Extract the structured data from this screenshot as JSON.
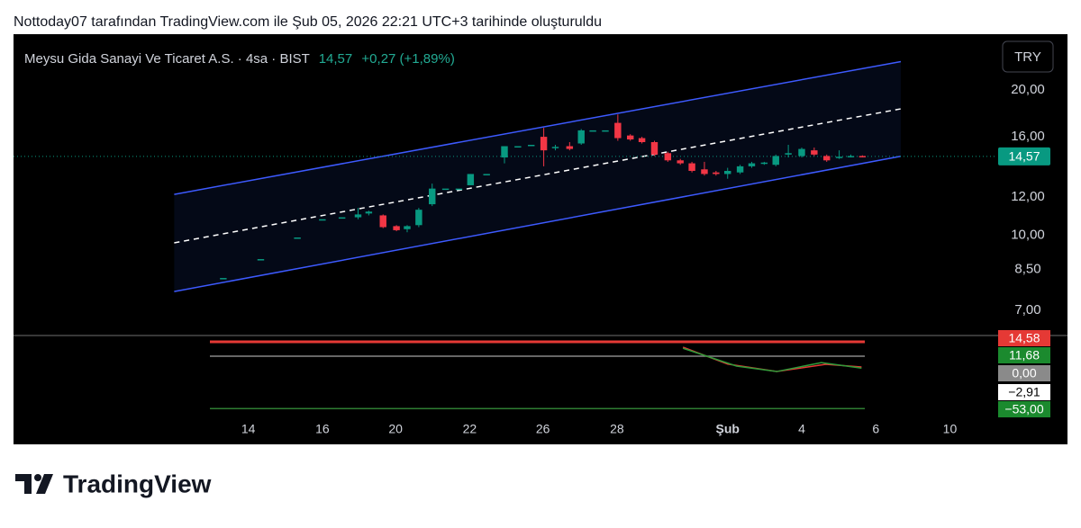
{
  "header": {
    "caption": "Nottoday07 tarafından TradingView.com ile Şub 05, 2026 22:21 UTC+3 tarihinde oluşturuldu"
  },
  "footer": {
    "brand": "TradingView"
  },
  "chart_data": {
    "type": "candlestick",
    "title": "Meysu Gida Sanayi Ve Ticaret A.S. · 4sa · BIST",
    "last_price": {
      "value": 14.57,
      "label": "14,57"
    },
    "change": "+0,27 (+1,89%)",
    "currency": "TRY",
    "log_scale": true,
    "grid": false,
    "up_color": "#089981",
    "down_color": "#f23645",
    "ylim": [
      6.23,
      26.1
    ],
    "yticks": [
      {
        "value": 20,
        "label": "20,00"
      },
      {
        "value": 16,
        "label": "16,00"
      },
      {
        "value": 12,
        "label": "12,00"
      },
      {
        "value": 10,
        "label": "10,00"
      },
      {
        "value": 8.5,
        "label": "8,50"
      },
      {
        "value": 7,
        "label": "7,00"
      }
    ],
    "xlim": [
      0,
      110
    ],
    "xticks": [
      {
        "value": 26.3,
        "label": "14"
      },
      {
        "value": 34.6,
        "label": "16"
      },
      {
        "value": 42.8,
        "label": "20"
      },
      {
        "value": 51.1,
        "label": "22"
      },
      {
        "value": 59.3,
        "label": "26"
      },
      {
        "value": 67.6,
        "label": "28"
      },
      {
        "value": 80,
        "label": "Şub"
      },
      {
        "value": 88.3,
        "label": "4"
      },
      {
        "value": 96.6,
        "label": "6"
      },
      {
        "value": 104.9,
        "label": "10"
      }
    ],
    "x": [
      23.5,
      27.7,
      31.8,
      34.6,
      36.8,
      38.6,
      39.8,
      41.4,
      42.9,
      44.1,
      45.4,
      46.9,
      48.4,
      49.9,
      51.2,
      53.0,
      55.0,
      56.5,
      58.0,
      59.4,
      60.7,
      62.3,
      63.6,
      64.9,
      66.3,
      67.7,
      69.1,
      70.4,
      71.8,
      73.3,
      74.7,
      76.0,
      77.4,
      78.7,
      80.0,
      81.4,
      82.7,
      84.1,
      85.4,
      86.8,
      88.3,
      89.7,
      91.1,
      92.5,
      93.8,
      95.1
    ],
    "open": [
      8.16,
      8.93,
      9.9,
      10.8,
      10.9,
      10.9,
      11.1,
      11.0,
      10.45,
      10.3,
      10.5,
      11.6,
      12.5,
      12.5,
      12.7,
      13.4,
      14.5,
      15.3,
      15.4,
      16.0,
      15.2,
      15.3,
      15.5,
      16.5,
      16.5,
      17.1,
      16.1,
      15.9,
      15.6,
      14.8,
      14.3,
      14.1,
      13.7,
      13.5,
      13.4,
      13.5,
      13.9,
      14.1,
      14.0,
      14.7,
      14.6,
      15.0,
      14.6,
      14.5,
      14.55,
      14.6
    ],
    "high": [
      8.16,
      8.93,
      9.9,
      10.8,
      10.9,
      11.4,
      11.25,
      11.05,
      10.5,
      10.5,
      11.4,
      12.8,
      12.5,
      12.5,
      13.4,
      13.4,
      15.3,
      15.3,
      15.4,
      16.7,
      15.4,
      15.6,
      16.6,
      16.5,
      16.5,
      17.8,
      16.2,
      16.0,
      15.7,
      14.9,
      14.4,
      14.2,
      14.2,
      13.6,
      13.8,
      14.0,
      14.2,
      14.2,
      14.7,
      15.4,
      15.2,
      15.2,
      14.7,
      15.0,
      14.7,
      14.65
    ],
    "low": [
      8.16,
      8.93,
      9.9,
      10.8,
      10.9,
      10.8,
      11.0,
      10.35,
      10.2,
      10.15,
      10.4,
      11.5,
      12.5,
      12.5,
      12.7,
      13.4,
      14.1,
      15.3,
      15.4,
      13.9,
      15.0,
      15.0,
      15.4,
      16.5,
      16.5,
      15.7,
      15.7,
      15.5,
      14.6,
      14.2,
      14.0,
      13.5,
      13.3,
      13.3,
      13.1,
      13.4,
      13.8,
      14.0,
      13.9,
      14.5,
      14.5,
      14.6,
      14.2,
      14.4,
      14.5,
      14.5
    ],
    "close": [
      8.16,
      8.93,
      9.9,
      10.8,
      10.9,
      11.05,
      11.2,
      10.4,
      10.25,
      10.45,
      11.3,
      12.5,
      12.5,
      12.5,
      13.4,
      13.4,
      15.3,
      15.3,
      15.4,
      15.0,
      15.25,
      15.1,
      16.5,
      16.5,
      16.5,
      15.9,
      15.8,
      15.6,
      14.7,
      14.3,
      14.1,
      13.6,
      13.4,
      13.4,
      13.6,
      13.9,
      14.1,
      14.15,
      14.6,
      14.8,
      15.1,
      14.7,
      14.3,
      14.55,
      14.6,
      14.57
    ],
    "channel": {
      "x": [
        18.0,
        99.4
      ],
      "upper": [
        12.16,
        22.9
      ],
      "middle": [
        9.65,
        18.28
      ],
      "lower": [
        7.65,
        14.58
      ],
      "color": "#3d5afe"
    },
    "indicator": {
      "ylim": [
        -60,
        20
      ],
      "levels": [
        14.58,
        0,
        -53
      ],
      "level_colors": [
        "#e53935",
        "#888888",
        "#2e7d32"
      ],
      "labels": [
        {
          "value": 14.58,
          "label": "14,58",
          "color": "#e53935"
        },
        {
          "value": 11.68,
          "label": "11,68",
          "color": "#1b8a2e"
        },
        {
          "value": 0,
          "label": "0,00",
          "color": "#8a8a8a"
        },
        {
          "value": -2.91,
          "label": "−2,91",
          "color": "#ffffff"
        },
        {
          "value": -53,
          "label": "−53,00",
          "color": "#1b8a2e"
        }
      ],
      "series": [
        {
          "color": "#e53935",
          "x": [
            75,
            80,
            85.5,
            91,
            95
          ],
          "values": [
            9.1,
            -8,
            -15.5,
            -8.2,
            -10.9
          ]
        },
        {
          "color": "#2e9b3a",
          "x": [
            75,
            81,
            85.5,
            90.5,
            95
          ],
          "values": [
            8,
            -10,
            -15.5,
            -6.5,
            -12
          ]
        }
      ]
    }
  }
}
